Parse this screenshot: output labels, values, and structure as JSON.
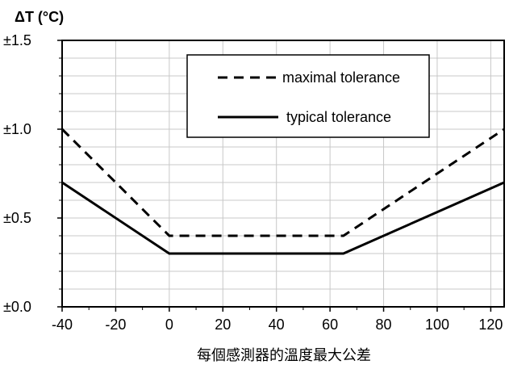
{
  "chart_data": {
    "type": "line",
    "ylabel": "ΔT (°C)",
    "xlim": [
      -40,
      125
    ],
    "ylim": [
      0,
      1.5
    ],
    "x_ticks": [
      -40,
      -20,
      0,
      20,
      40,
      60,
      80,
      100,
      120
    ],
    "x_tick_labels": [
      "-40",
      "-20",
      "0",
      "20",
      "40",
      "60",
      "80",
      "100",
      "120"
    ],
    "y_ticks": [
      0,
      0.5,
      1.0,
      1.5
    ],
    "y_tick_labels": [
      "±0.0",
      "±0.5",
      "±1.0",
      "±1.5"
    ],
    "grid": true,
    "legend_position": "top-right",
    "series": [
      {
        "name": "maximal tolerance",
        "style": "dashed",
        "color": "#000000",
        "x": [
          -40,
          0,
          65,
          125
        ],
        "y": [
          1.0,
          0.4,
          0.4,
          1.0
        ]
      },
      {
        "name": "typical tolerance",
        "style": "solid",
        "color": "#000000",
        "x": [
          -40,
          0,
          65,
          125
        ],
        "y": [
          0.7,
          0.3,
          0.3,
          0.7
        ]
      }
    ],
    "caption": "每個感測器的溫度最大公差"
  }
}
